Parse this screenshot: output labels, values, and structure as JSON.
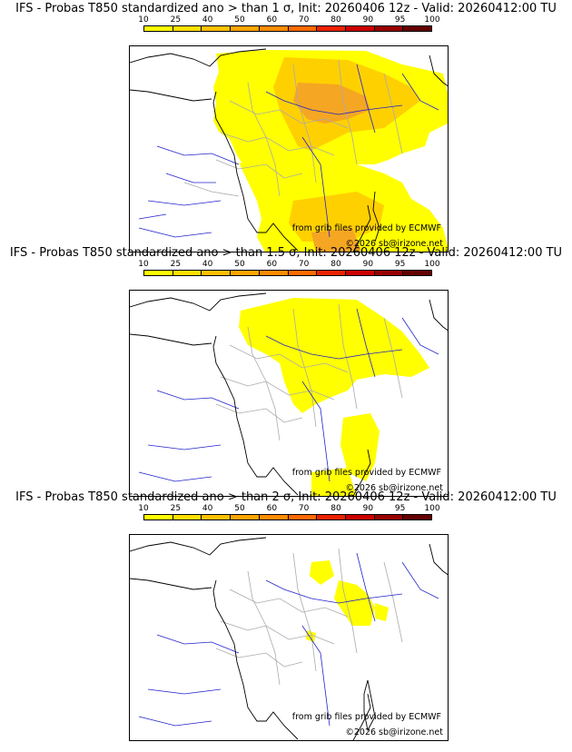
{
  "colorbar": {
    "ticks": [
      "10",
      "25",
      "40",
      "50",
      "60",
      "70",
      "80",
      "90",
      "95",
      "100"
    ],
    "colors": [
      "#ffff00",
      "#ffe000",
      "#ffc000",
      "#ffa500",
      "#ff8c00",
      "#ff6a00",
      "#ee2200",
      "#cc0000",
      "#990000",
      "#660000"
    ]
  },
  "map_colors": {
    "water": "#2222cc",
    "border": "#aaaaaa",
    "coast": "#000000",
    "low": "#ffff00",
    "mid": "#ffd000",
    "high": "#f5a623"
  },
  "panels": [
    {
      "title": "IFS - Probas T850  standardized ano > than 1 σ, Init: 20260406 12z - Valid: 20260412:00 TU",
      "credit_grib": "from grib files provided by ECMWF",
      "credit_site": "©2026 sb@irizone.net"
    },
    {
      "title": "IFS - Probas T850  standardized ano > than 1.5 σ, Init: 20260406 12z - Valid: 20260412:00 TU",
      "credit_grib": "from grib files provided by ECMWF",
      "credit_site": "©2026 sb@irizone.net"
    },
    {
      "title": "IFS - Probas T850  standardized ano > than 2 σ, Init: 20260406 12z - Valid: 20260412:00 TU",
      "credit_grib": "from grib files provided by ECMWF",
      "credit_site": "©2026 sb@irizone.net"
    }
  ]
}
